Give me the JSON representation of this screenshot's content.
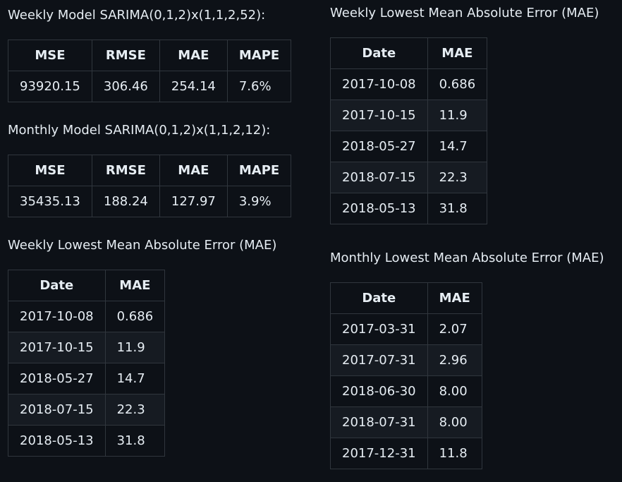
{
  "weekly_model": {
    "title": "Weekly Model SARIMA(0,1,2)x(1,1,2,52):",
    "headers": [
      "MSE",
      "RMSE",
      "MAE",
      "MAPE"
    ],
    "values": [
      "93920.15",
      "306.46",
      "254.14",
      "7.6%"
    ]
  },
  "monthly_model": {
    "title": "Monthly Model SARIMA(0,1,2)x(1,1,2,12):",
    "headers": [
      "MSE",
      "RMSE",
      "MAE",
      "MAPE"
    ],
    "values": [
      "35435.13",
      "188.24",
      "127.97",
      "3.9%"
    ]
  },
  "weekly_lowest_left": {
    "title": "Weekly Lowest Mean Absolute Error (MAE)",
    "headers": [
      "Date",
      "MAE"
    ],
    "rows": [
      [
        "2017-10-08",
        "0.686"
      ],
      [
        "2017-10-15",
        "11.9"
      ],
      [
        "2018-05-27",
        "14.7"
      ],
      [
        "2018-07-15",
        "22.3"
      ],
      [
        "2018-05-13",
        "31.8"
      ]
    ]
  },
  "weekly_lowest_right": {
    "title": "Weekly Lowest Mean Absolute Error (MAE)",
    "headers": [
      "Date",
      "MAE"
    ],
    "rows": [
      [
        "2017-10-08",
        "0.686"
      ],
      [
        "2017-10-15",
        "11.9"
      ],
      [
        "2018-05-27",
        "14.7"
      ],
      [
        "2018-07-15",
        "22.3"
      ],
      [
        "2018-05-13",
        "31.8"
      ]
    ]
  },
  "monthly_lowest": {
    "title": "Monthly Lowest Mean Absolute Error (MAE)",
    "headers": [
      "Date",
      "MAE"
    ],
    "rows": [
      [
        "2017-03-31",
        "2.07"
      ],
      [
        "2017-07-31",
        "2.96"
      ],
      [
        "2018-06-30",
        "8.00"
      ],
      [
        "2018-07-31",
        "8.00"
      ],
      [
        "2017-12-31",
        "11.8"
      ]
    ]
  }
}
